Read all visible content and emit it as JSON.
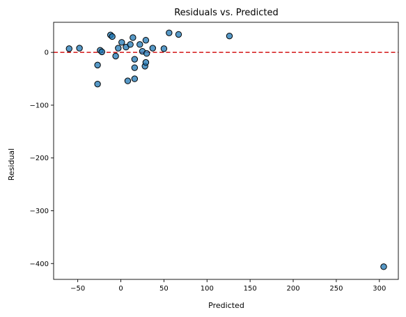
{
  "chart_data": {
    "type": "scatter",
    "title": "Residuals vs. Predicted",
    "xlabel": "Predicted",
    "ylabel": "Residual",
    "xlim": [
      -78,
      322
    ],
    "ylim": [
      -430,
      57
    ],
    "xticks": [
      -50,
      0,
      50,
      100,
      150,
      200,
      250,
      300
    ],
    "yticks": [
      -400,
      -300,
      -200,
      -100,
      0
    ],
    "grid": false,
    "reference_line": {
      "y": 0,
      "color": "#d62728",
      "style": "dashed"
    },
    "marker_color": "#1f77b4",
    "points": [
      {
        "x": -60,
        "y": 7
      },
      {
        "x": -48,
        "y": 8
      },
      {
        "x": -27,
        "y": -24
      },
      {
        "x": -27,
        "y": -60
      },
      {
        "x": -24,
        "y": 4
      },
      {
        "x": -22,
        "y": 1
      },
      {
        "x": -12,
        "y": 33
      },
      {
        "x": -10,
        "y": 30
      },
      {
        "x": -6,
        "y": -7
      },
      {
        "x": -3,
        "y": 8
      },
      {
        "x": 1,
        "y": 19
      },
      {
        "x": 6,
        "y": 10
      },
      {
        "x": 8,
        "y": -54
      },
      {
        "x": 11,
        "y": 15
      },
      {
        "x": 14,
        "y": 28
      },
      {
        "x": 16,
        "y": -13
      },
      {
        "x": 16,
        "y": -29
      },
      {
        "x": 16,
        "y": -50
      },
      {
        "x": 22,
        "y": 15
      },
      {
        "x": 25,
        "y": 2
      },
      {
        "x": 28,
        "y": -26
      },
      {
        "x": 29,
        "y": -19
      },
      {
        "x": 29,
        "y": 23
      },
      {
        "x": 30,
        "y": -2
      },
      {
        "x": 37,
        "y": 8
      },
      {
        "x": 50,
        "y": 7
      },
      {
        "x": 56,
        "y": 37
      },
      {
        "x": 67,
        "y": 34
      },
      {
        "x": 126,
        "y": 31
      },
      {
        "x": 305,
        "y": -406
      }
    ]
  }
}
